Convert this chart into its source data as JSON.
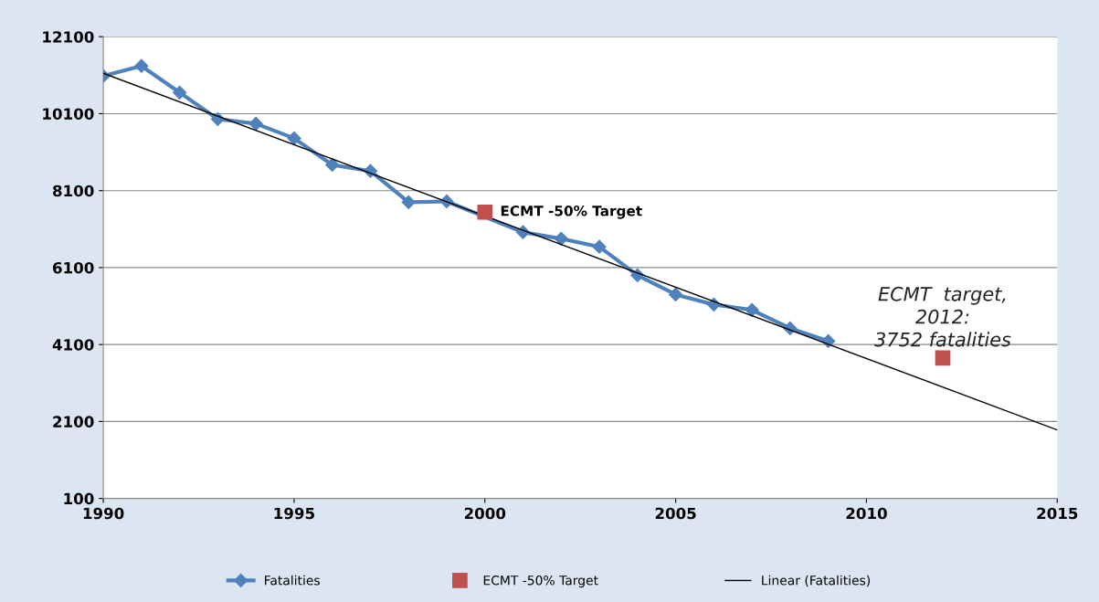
{
  "chart_data": {
    "type": "line",
    "x": [
      1990,
      1991,
      1992,
      1993,
      1994,
      1995,
      1996,
      1997,
      1998,
      1999,
      2000,
      2001,
      2002,
      2003,
      2004,
      2005,
      2006,
      2007,
      2008,
      2009
    ],
    "series": [
      {
        "name": "Fatalities",
        "color": "#4f81bd",
        "marker": "diamond",
        "values": [
          11080,
          11340,
          10650,
          9960,
          9840,
          9460,
          8770,
          8610,
          7800,
          7820,
          null,
          7020,
          6850,
          6640,
          5900,
          5400,
          5140,
          5000,
          4520,
          4190
        ]
      },
      {
        "name": "ECMT -50% Target",
        "color": "#c0504d",
        "type": "scatter",
        "marker": "square",
        "x": [
          2000,
          2012
        ],
        "values": [
          7540,
          3752
        ]
      },
      {
        "name": "Linear (Fatalities)",
        "color": "#000000",
        "marker": "none",
        "x": [
          1990,
          2015
        ],
        "values": [
          11150,
          1880
        ]
      }
    ],
    "annotations": [
      {
        "text": "ECMT -50% Target",
        "x": 2000,
        "y": 7540
      },
      {
        "text": "ECMT  target,\n2012:\n3752 fatalities",
        "x": 2012,
        "y": 3752
      }
    ],
    "xlim": [
      1990,
      2015
    ],
    "xticks": [
      1990,
      1995,
      2000,
      2005,
      2010,
      2015
    ],
    "ylim": [
      100,
      12100
    ],
    "yticks": [
      100,
      2100,
      4100,
      6100,
      8100,
      10100,
      12100
    ],
    "grid": "y",
    "legend": "bottom"
  }
}
